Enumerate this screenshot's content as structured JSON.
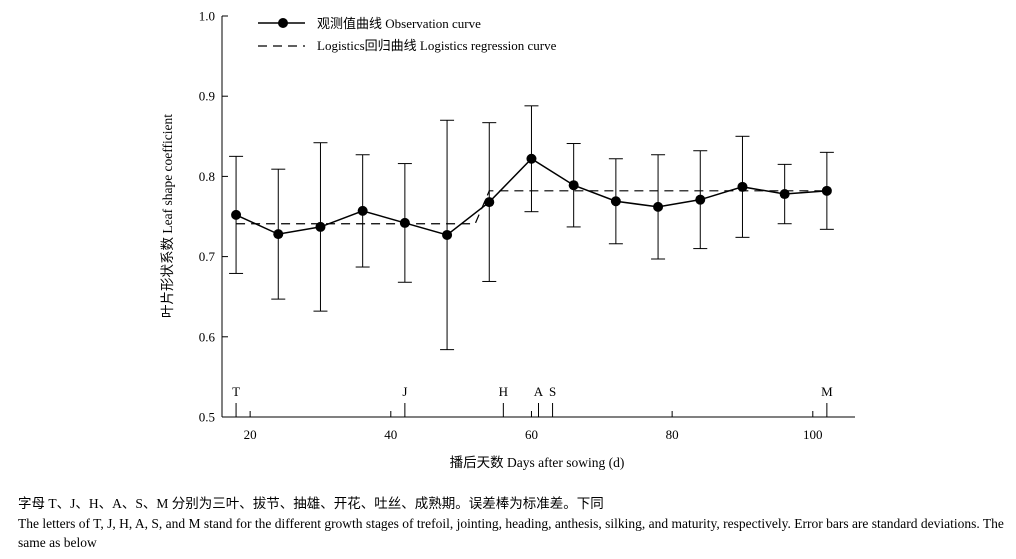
{
  "chart_data": {
    "type": "line",
    "xlabel": "播后天数 Days after sowing (d)",
    "ylabel": "叶片形状系数 Leaf shape coefficient",
    "xlim": [
      16,
      106
    ],
    "ylim": [
      0.5,
      1.0
    ],
    "x_ticks": [
      20,
      40,
      60,
      80,
      100
    ],
    "y_ticks": [
      0.5,
      0.6,
      0.7,
      0.8,
      0.9,
      1.0
    ],
    "y_tick_labels": [
      "0.5",
      "0.6",
      "0.7",
      "0.8",
      "0.9",
      "1.0"
    ],
    "legend_position": "top-left",
    "series": [
      {
        "name": "观测值曲线 Observation curve",
        "style": "solid-with-markers",
        "x": [
          18,
          24,
          30,
          36,
          42,
          48,
          54,
          60,
          66,
          72,
          78,
          84,
          90,
          96,
          102
        ],
        "y": [
          0.752,
          0.728,
          0.737,
          0.757,
          0.742,
          0.727,
          0.768,
          0.822,
          0.789,
          0.769,
          0.762,
          0.771,
          0.787,
          0.778,
          0.782
        ],
        "error": [
          0.073,
          0.081,
          0.105,
          0.07,
          0.074,
          0.143,
          0.099,
          0.066,
          0.052,
          0.053,
          0.065,
          0.061,
          0.063,
          0.037,
          0.048
        ]
      },
      {
        "name": "Logistics回归曲线 Logistics regression curve",
        "style": "dashed",
        "x": [
          18,
          52,
          54,
          102
        ],
        "y": [
          0.741,
          0.741,
          0.782,
          0.782
        ]
      }
    ],
    "stage_markers": [
      {
        "label": "T",
        "x": 18
      },
      {
        "label": "J",
        "x": 42
      },
      {
        "label": "H",
        "x": 56
      },
      {
        "label": "A",
        "x": 61
      },
      {
        "label": "S",
        "x": 63
      },
      {
        "label": "M",
        "x": 102
      }
    ]
  },
  "caption": {
    "cn": "字母 T、J、H、A、S、M 分别为三叶、拔节、抽雄、开花、吐丝、成熟期。误差棒为标准差。下同",
    "en": "The letters of T, J, H, A, S, and M stand for the different growth stages of trefoil, jointing, heading, anthesis, silking, and maturity, respectively. Error bars are standard deviations. The same as below"
  }
}
